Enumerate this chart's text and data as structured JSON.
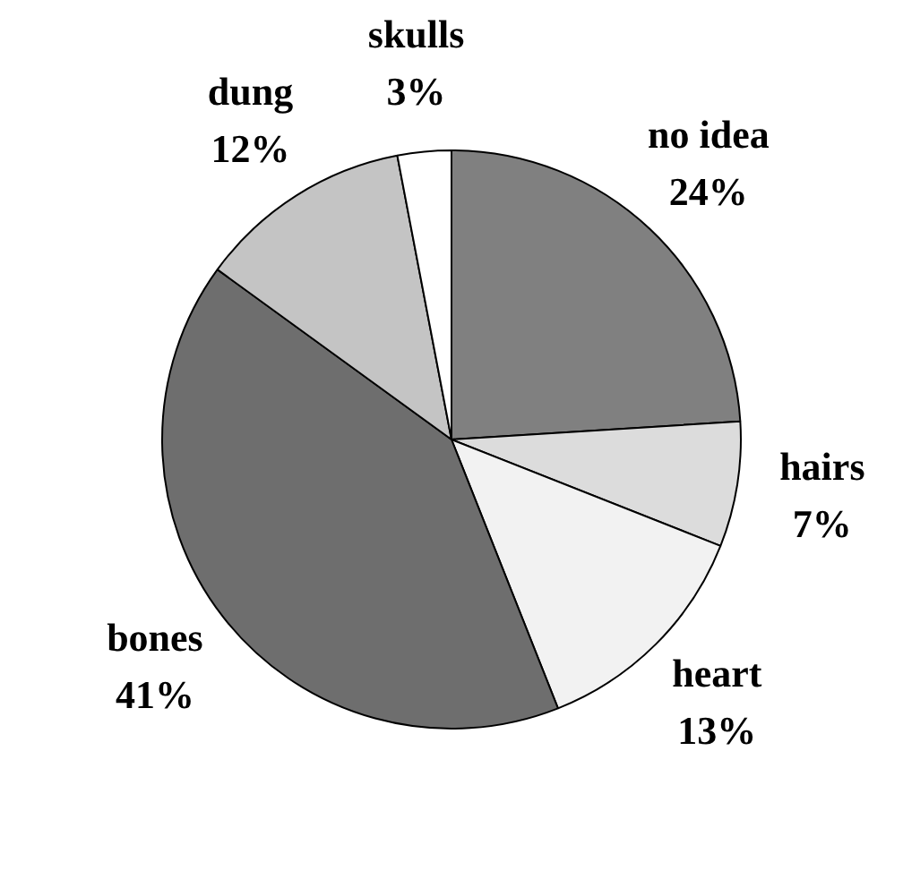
{
  "chart_data": {
    "type": "pie",
    "categories": [
      "no idea",
      "hairs",
      "heart",
      "bones",
      "dung",
      "skulls"
    ],
    "values": [
      24,
      7,
      13,
      41,
      12,
      3
    ],
    "value_labels": [
      "24%",
      "7%",
      "13%",
      "41%",
      "12%",
      "3%"
    ],
    "colors": [
      "#808080",
      "#dcdcdc",
      "#f2f2f2",
      "#6e6e6e",
      "#c4c4c4",
      "#ffffff"
    ],
    "legend": false
  }
}
